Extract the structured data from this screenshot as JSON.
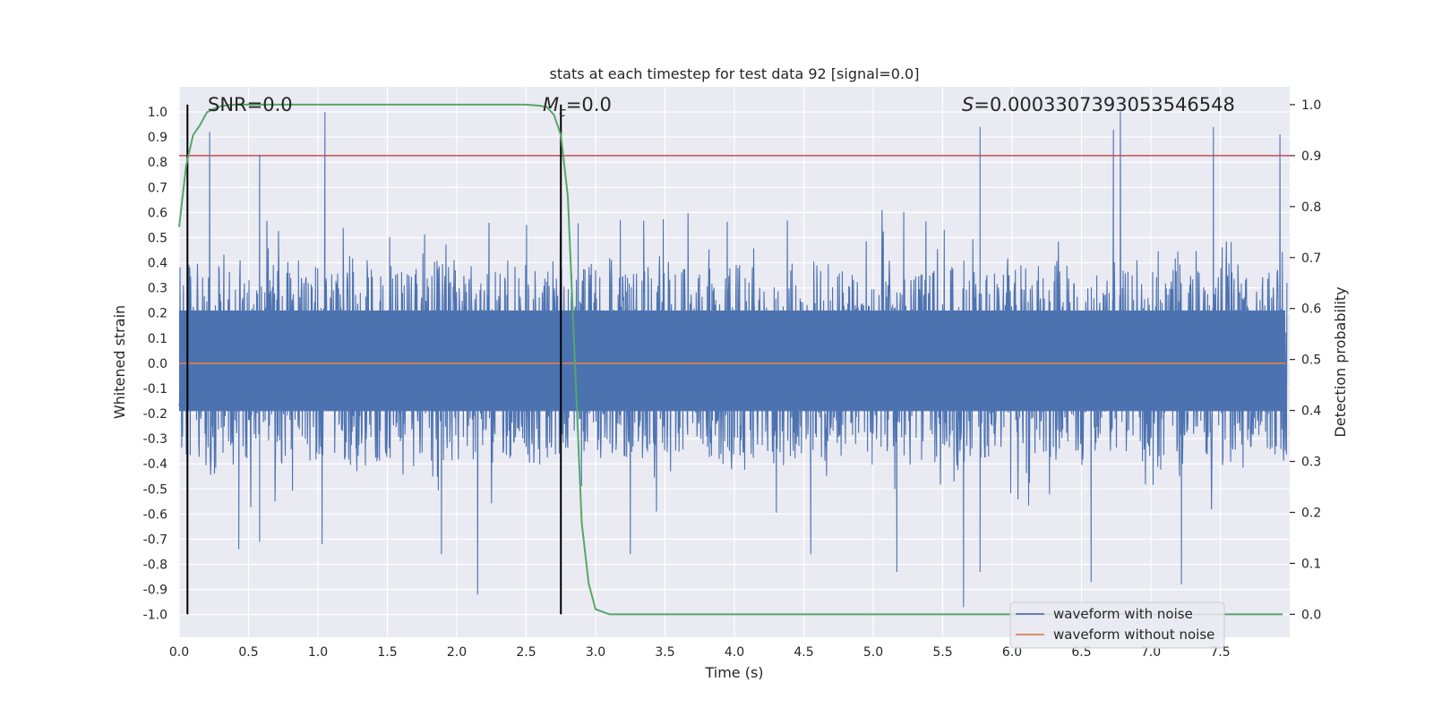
{
  "chart_data": {
    "type": "line",
    "title": "stats at each timestep for test data 92 [signal=0.0]",
    "xlabel": "Time (s)",
    "ylabel": "Whitened strain",
    "ylabel_right": "Detection probability",
    "xlim": [
      0.0,
      8.0
    ],
    "ylim": [
      -1.09,
      1.1
    ],
    "ylim_right": [
      -0.045,
      1.035
    ],
    "x_ticks": [
      "0.0",
      "0.5",
      "1.0",
      "1.5",
      "2.0",
      "2.5",
      "3.0",
      "3.5",
      "4.0",
      "4.5",
      "5.0",
      "5.5",
      "6.0",
      "6.5",
      "7.0",
      "7.5"
    ],
    "y_ticks": [
      "1.0",
      "0.9",
      "0.8",
      "0.7",
      "0.6",
      "0.5",
      "0.4",
      "0.3",
      "0.2",
      "0.1",
      "0.0",
      "-0.1",
      "-0.2",
      "-0.3",
      "-0.4",
      "-0.5",
      "-0.6",
      "-0.7",
      "-0.8",
      "-0.9",
      "-1.0"
    ],
    "y_ticks_right": [
      "1.0",
      "0.9",
      "0.8",
      "0.7",
      "0.6",
      "0.5",
      "0.4",
      "0.3",
      "0.2",
      "0.1",
      "0.0"
    ],
    "grid": true,
    "legend_position": "lower-right",
    "annotations": {
      "snr_label": "SNR=0.0",
      "mc_label_italic": "M",
      "mc_label_sub": "c",
      "mc_label_value": "=0.0",
      "s_label_italic": "S",
      "s_label_value": "=0.0003307393053546548"
    },
    "series": [
      {
        "name": "waveform with noise",
        "color": "#4c72b0",
        "axis": "left",
        "description": "noise-only whitened strain, dense oscillation mostly within ±0.4",
        "peaks": [
          {
            "x": 0.22,
            "y": 0.92
          },
          {
            "x": 0.58,
            "y": 0.83
          },
          {
            "x": 1.05,
            "y": 1.0
          },
          {
            "x": 5.77,
            "y": 0.94
          },
          {
            "x": 6.73,
            "y": 0.93
          },
          {
            "x": 6.78,
            "y": 1.0
          },
          {
            "x": 7.45,
            "y": 0.94
          },
          {
            "x": 7.93,
            "y": 0.91
          }
        ],
        "troughs": [
          {
            "x": 0.43,
            "y": -0.74
          },
          {
            "x": 0.58,
            "y": -0.71
          },
          {
            "x": 1.03,
            "y": -0.72
          },
          {
            "x": 1.89,
            "y": -0.76
          },
          {
            "x": 2.15,
            "y": -0.92
          },
          {
            "x": 3.25,
            "y": -0.76
          },
          {
            "x": 4.55,
            "y": -0.76
          },
          {
            "x": 5.17,
            "y": -0.83
          },
          {
            "x": 5.65,
            "y": -0.97
          },
          {
            "x": 5.77,
            "y": -0.83
          },
          {
            "x": 6.57,
            "y": -0.87
          },
          {
            "x": 7.22,
            "y": -0.88
          }
        ]
      },
      {
        "name": "waveform without noise",
        "color": "#dd8452",
        "axis": "left",
        "x": [
          0.0,
          8.0
        ],
        "y": [
          0.0,
          0.0
        ]
      },
      {
        "name": "detection probability",
        "color": "#55a868",
        "axis": "right",
        "x": [
          0.0,
          0.05,
          0.1,
          0.15,
          0.2,
          0.25,
          0.3,
          0.35,
          0.4,
          0.5,
          1.0,
          2.0,
          2.5,
          2.6,
          2.65,
          2.7,
          2.75,
          2.8,
          2.85,
          2.9,
          2.95,
          3.0,
          3.1,
          3.5,
          4.0,
          5.0,
          6.0,
          7.0,
          7.95
        ],
        "y": [
          0.76,
          0.88,
          0.94,
          0.96,
          0.985,
          0.992,
          0.997,
          0.999,
          1.0,
          1.0,
          1.0,
          1.0,
          1.0,
          0.998,
          0.995,
          0.98,
          0.94,
          0.82,
          0.5,
          0.18,
          0.06,
          0.01,
          0.0,
          0.0,
          0.0,
          0.0,
          0.0,
          0.0,
          0.0
        ]
      }
    ],
    "threshold_line": {
      "axis": "right",
      "y": 0.9,
      "color": "#c44e52"
    },
    "vertical_markers": [
      {
        "x": 0.06,
        "y_bottom": 0.0,
        "y_top": 1.0,
        "color": "#000000"
      },
      {
        "x": 2.75,
        "y_bottom": 0.0,
        "y_top": 1.0,
        "color": "#000000"
      }
    ],
    "colors": {
      "plot_background": "#eaeaf2",
      "grid": "#ffffff"
    }
  }
}
